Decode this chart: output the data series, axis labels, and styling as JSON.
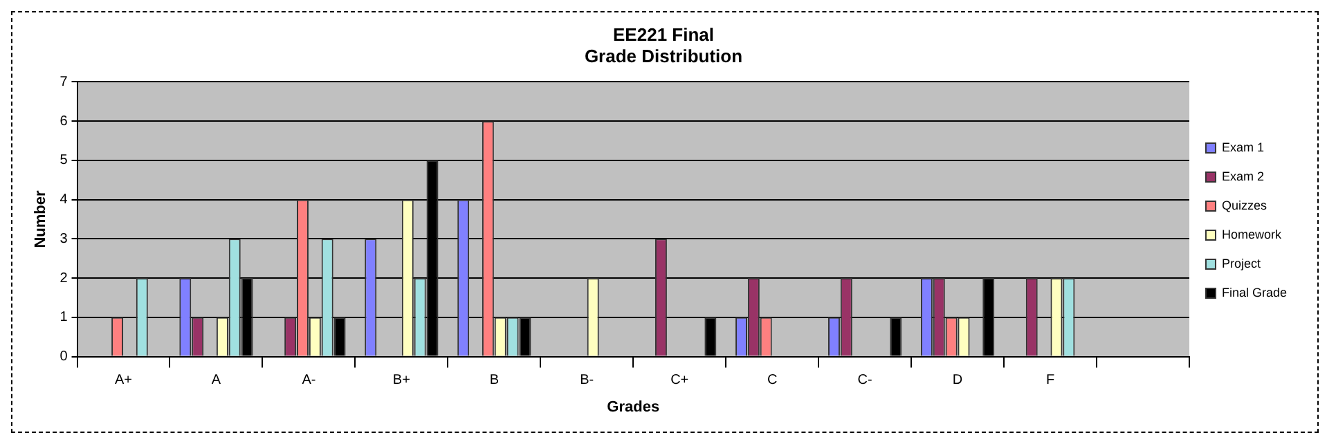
{
  "chart_data": {
    "type": "bar",
    "title": "EE221 Final",
    "subtitle": "Grade Distribution",
    "xlabel": "Grades",
    "ylabel": "Number",
    "categories": [
      "A+",
      "A",
      "A-",
      "B+",
      "B",
      "B-",
      "C+",
      "C",
      "C-",
      "D",
      "F",
      null
    ],
    "series": [
      {
        "name": "Exam 1",
        "color": "#8080ff",
        "values": [
          0,
          2,
          0,
          3,
          4,
          0,
          0,
          1,
          1,
          2,
          0,
          null
        ]
      },
      {
        "name": "Exam 2",
        "color": "#993366",
        "values": [
          0,
          1,
          1,
          0,
          0,
          0,
          3,
          2,
          2,
          2,
          2,
          null
        ]
      },
      {
        "name": "Quizzes",
        "color": "#ff8080",
        "values": [
          1,
          0,
          4,
          0,
          6,
          0,
          0,
          1,
          0,
          1,
          0,
          null
        ]
      },
      {
        "name": "Homework",
        "color": "#ffffc0",
        "values": [
          0,
          1,
          1,
          4,
          1,
          2,
          0,
          0,
          0,
          1,
          2,
          null
        ]
      },
      {
        "name": "Project",
        "color": "#a0e0e0",
        "values": [
          2,
          3,
          3,
          2,
          1,
          0,
          0,
          0,
          0,
          0,
          2,
          null
        ]
      },
      {
        "name": "Final Grade",
        "color": "#000000",
        "values": [
          0,
          2,
          1,
          5,
          1,
          0,
          1,
          0,
          1,
          2,
          0,
          null
        ]
      }
    ],
    "ylim": [
      0,
      7
    ],
    "yticks": [
      0,
      1,
      2,
      3,
      4,
      5,
      6,
      7
    ],
    "grid": "y",
    "legend": "right"
  }
}
